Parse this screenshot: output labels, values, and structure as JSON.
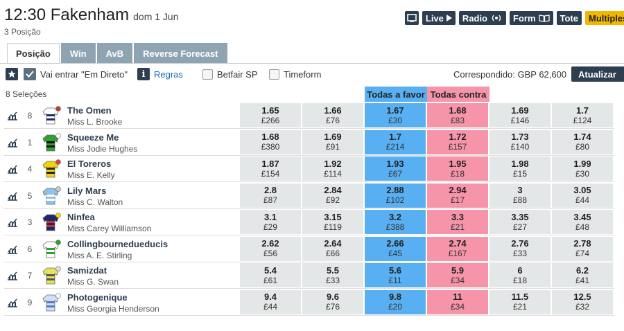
{
  "race": {
    "time_course": "12:30 Fakenham",
    "date": "dom 1 Jun",
    "places": "3 Posição"
  },
  "header_buttons": {
    "live": "Live",
    "radio": "Radio",
    "form": "Form",
    "tote": "Tote",
    "multiples": "Multiples"
  },
  "tabs": [
    "Posição",
    "Win",
    "AvB",
    "Reverse Forecast"
  ],
  "toolbar": {
    "inplay": "Vai entrar \"Em Direto\"",
    "rules": "Regras",
    "betfair_sp": "Betfair SP",
    "timeform": "Timeform",
    "matched": "Correspondido: GBP 62,600",
    "refresh": "Atualizar"
  },
  "grid": {
    "selections": "8 Seleções",
    "back_all": "Todas a favor",
    "lay_all": "Todas contra"
  },
  "colors": {
    "back": "#58b0f3",
    "lay": "#f694aa",
    "dark": "#2c3e50",
    "accent": "#f0b800"
  },
  "runners": [
    {
      "num": "8",
      "name": "The Omen",
      "jockey": "Miss L. Brooke",
      "prices": [
        [
          "1.65",
          "£266"
        ],
        [
          "1.66",
          "£76"
        ],
        [
          "1.67",
          "£30"
        ],
        [
          "1.68",
          "£83"
        ],
        [
          "1.69",
          "£146"
        ],
        [
          "1.7",
          "£124"
        ]
      ]
    },
    {
      "num": "1",
      "name": "Squeeze Me",
      "jockey": "Miss Jodie Hughes",
      "prices": [
        [
          "1.68",
          "£380"
        ],
        [
          "1.69",
          "£91"
        ],
        [
          "1.7",
          "£214"
        ],
        [
          "1.72",
          "£157"
        ],
        [
          "1.73",
          "£140"
        ],
        [
          "1.74",
          "£80"
        ]
      ]
    },
    {
      "num": "4",
      "name": "El Toreros",
      "jockey": "Miss E. Kelly",
      "prices": [
        [
          "1.87",
          "£154"
        ],
        [
          "1.92",
          "£114"
        ],
        [
          "1.93",
          "£67"
        ],
        [
          "1.95",
          "£18"
        ],
        [
          "1.98",
          "£15"
        ],
        [
          "1.99",
          "£30"
        ]
      ]
    },
    {
      "num": "5",
      "name": "Lily Mars",
      "jockey": "Miss C. Walton",
      "prices": [
        [
          "2.8",
          "£87"
        ],
        [
          "2.84",
          "£92"
        ],
        [
          "2.88",
          "£102"
        ],
        [
          "2.94",
          "£17"
        ],
        [
          "3",
          "£88"
        ],
        [
          "3.05",
          "£44"
        ]
      ]
    },
    {
      "num": "3",
      "name": "Ninfea",
      "jockey": "Miss Carey Williamson",
      "prices": [
        [
          "3.1",
          "£29"
        ],
        [
          "3.15",
          "£119"
        ],
        [
          "3.2",
          "£388"
        ],
        [
          "3.3",
          "£21"
        ],
        [
          "3.35",
          "£27"
        ],
        [
          "3.45",
          "£48"
        ]
      ]
    },
    {
      "num": "6",
      "name": "Collingbournedueducis",
      "jockey": "Miss A. E. Stirling",
      "prices": [
        [
          "2.62",
          "£56"
        ],
        [
          "2.64",
          "£66"
        ],
        [
          "2.66",
          "£45"
        ],
        [
          "2.74",
          "£167"
        ],
        [
          "2.76",
          "£33"
        ],
        [
          "2.78",
          "£74"
        ]
      ]
    },
    {
      "num": "7",
      "name": "Samizdat",
      "jockey": "Miss G. Swan",
      "prices": [
        [
          "5.4",
          "£61"
        ],
        [
          "5.5",
          "£33"
        ],
        [
          "5.6",
          "£11"
        ],
        [
          "5.9",
          "£34"
        ],
        [
          "6",
          "£18"
        ],
        [
          "6.2",
          "£41"
        ]
      ]
    },
    {
      "num": "9",
      "name": "Photogenique",
      "jockey": "Miss Georgia Henderson",
      "prices": [
        [
          "9.4",
          "£44"
        ],
        [
          "9.6",
          "£76"
        ],
        [
          "9.8",
          "£20"
        ],
        [
          "11",
          "£34"
        ],
        [
          "11.5",
          "£21"
        ],
        [
          "12.5",
          "£32"
        ]
      ]
    }
  ]
}
